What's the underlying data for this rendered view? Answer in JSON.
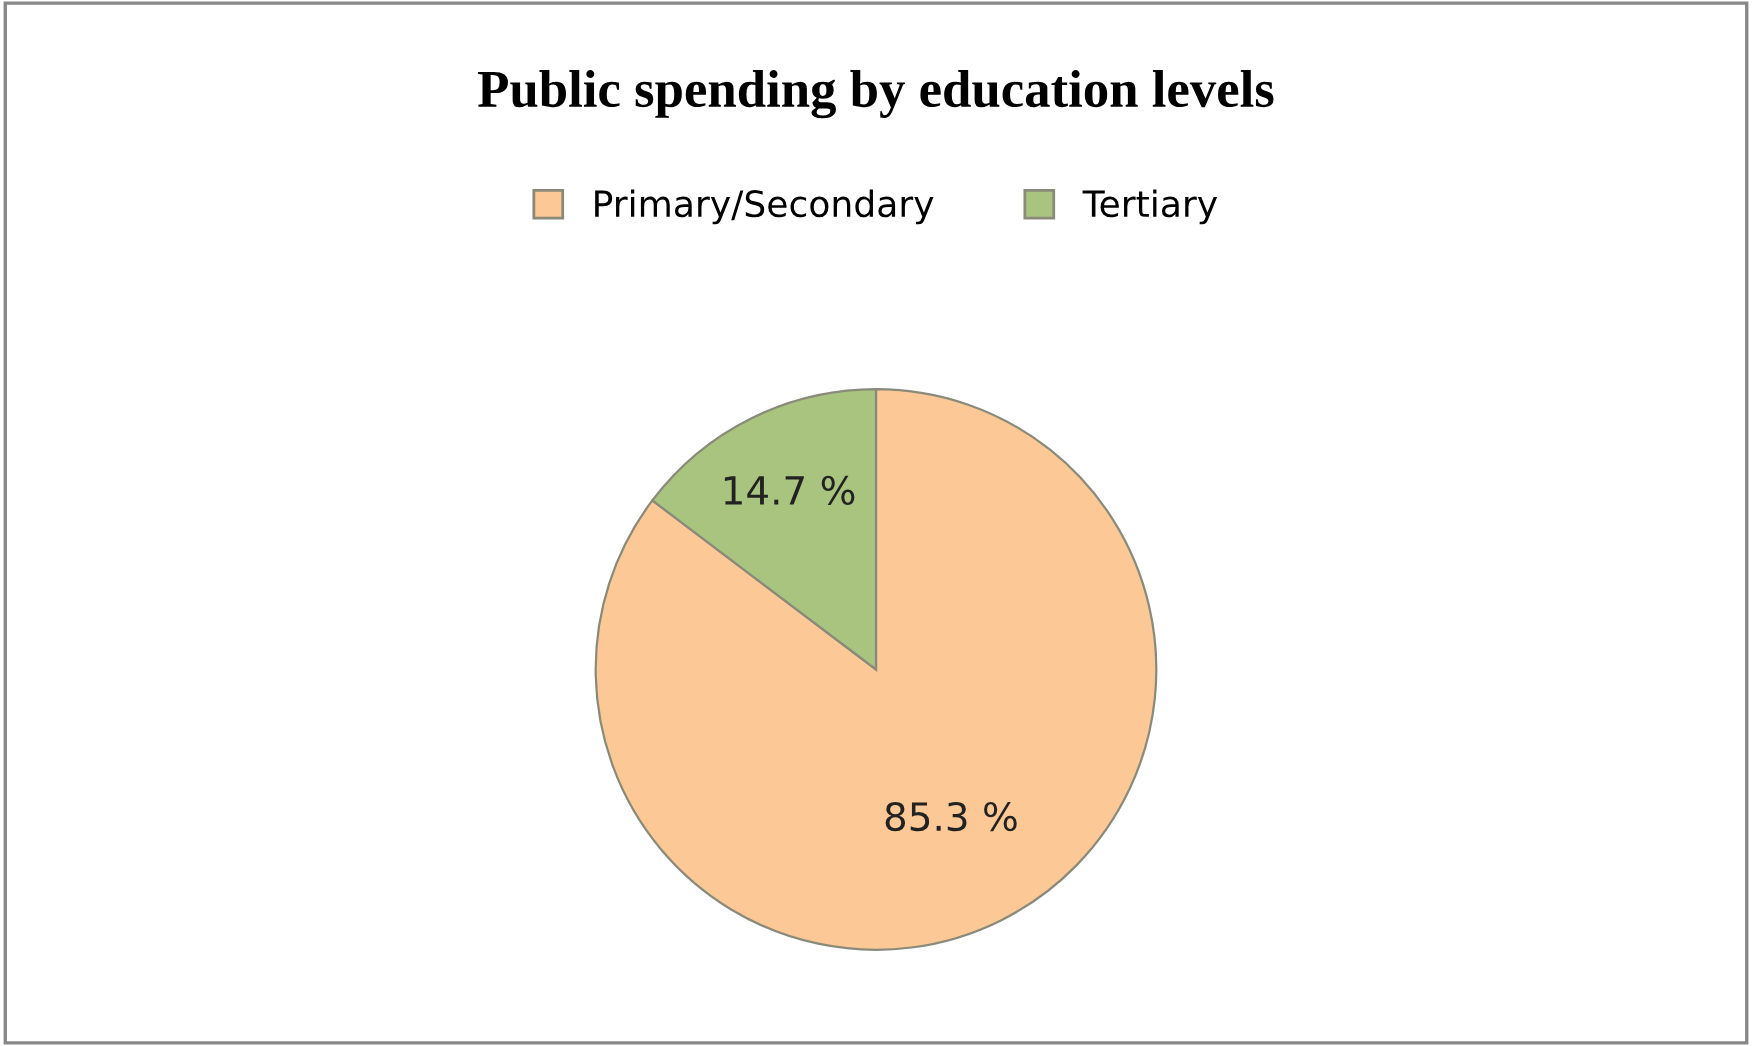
{
  "chart_data": {
    "type": "pie",
    "title": "Public spending by education levels",
    "categories": [
      "Primary/Secondary",
      "Tertiary"
    ],
    "values": [
      85.3,
      14.7
    ],
    "colors": [
      "#fcc896",
      "#a9c47f"
    ],
    "value_labels": [
      "85.3 %",
      "14.7 %"
    ],
    "legend": "top"
  }
}
